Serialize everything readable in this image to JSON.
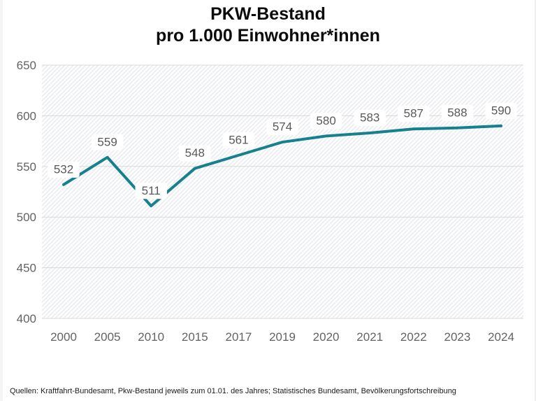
{
  "title": {
    "line1": "PKW-Bestand",
    "line2": "pro 1.000 Einwohner*innen"
  },
  "source_note": "Quellen: Kraftfahrt-Bundesamt, Pkw-Bestand jeweils zum 01.01. des Jahres; Statistisches Bundesamt, Bevölkerungsfortschreibung",
  "chart_data": {
    "type": "line",
    "title": "PKW-Bestand pro 1.000 Einwohner*innen",
    "categories": [
      "2000",
      "2005",
      "2010",
      "2015",
      "2017",
      "2019",
      "2020",
      "2021",
      "2022",
      "2023",
      "2024"
    ],
    "values": [
      532,
      559,
      511,
      548,
      561,
      574,
      580,
      583,
      587,
      588,
      590
    ],
    "xlabel": "",
    "ylabel": "",
    "ylim": [
      400,
      650
    ],
    "yticks": [
      400,
      450,
      500,
      550,
      600,
      650
    ],
    "grid": true,
    "legend": false,
    "value_labels_visible": true,
    "background_pattern": "diagonal-hatch",
    "colors": {
      "line": "#17808F",
      "grid": "#d9d9d9",
      "hatch": "#e9ecef",
      "tick_text": "#636363",
      "value_label_text": "#59595b",
      "value_label_bg": "#ffffff"
    }
  }
}
